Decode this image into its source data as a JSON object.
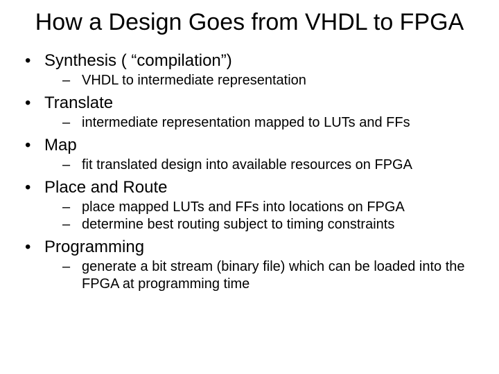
{
  "title": "How a Design Goes from VHDL to FPGA",
  "bullets": [
    {
      "label": "Synthesis ( “compilation”)",
      "subs": [
        "VHDL to intermediate representation"
      ]
    },
    {
      "label": "Translate",
      "subs": [
        "intermediate representation mapped to LUTs and FFs"
      ]
    },
    {
      "label": "Map",
      "subs": [
        "fit translated design into available resources on FPGA"
      ]
    },
    {
      "label": "Place and Route",
      "subs": [
        "place mapped LUTs and FFs into locations on FPGA",
        "determine best routing subject to timing constraints"
      ]
    },
    {
      "label": "Programming",
      "subs": [
        "generate a bit stream (binary file) which can be loaded into the FPGA at programming time"
      ]
    }
  ]
}
